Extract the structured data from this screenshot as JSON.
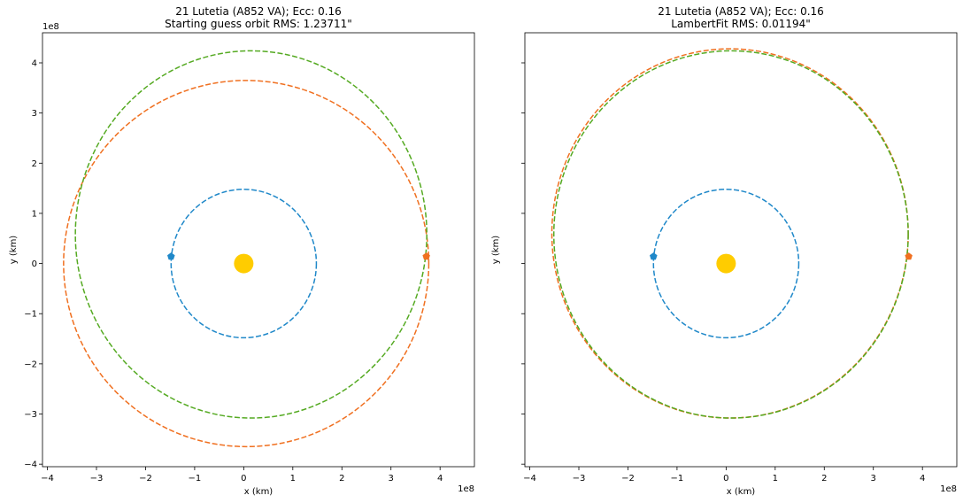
{
  "chart_data": [
    {
      "type": "line",
      "title": "21 Lutetia (A852 VA); Ecc: 0.16",
      "subtitle": "Starting guess orbit RMS: 1.23711\"",
      "xlabel": "x (km)",
      "ylabel": "y (km)",
      "xlim": [
        -4.1,
        4.7
      ],
      "ylim": [
        -4.05,
        4.6
      ],
      "xticks": [
        -4,
        -3,
        -2,
        -1,
        0,
        1,
        2,
        3,
        4
      ],
      "yticks": [
        -4,
        -3,
        -2,
        -1,
        0,
        1,
        2,
        3,
        4
      ],
      "xtick_labels": [
        "−4",
        "−3",
        "−2",
        "−1",
        "0",
        "1",
        "2",
        "3",
        "4"
      ],
      "ytick_labels": [
        "−4",
        "−3",
        "−2",
        "−1",
        "0",
        "1",
        "2",
        "3",
        "4"
      ],
      "x_offset_label": "1e8",
      "y_offset_label": "1e8",
      "grid": false,
      "sun": {
        "x": 0,
        "y": 0,
        "color": "#ffcc00"
      },
      "series": [
        {
          "color": "#1f88c9",
          "linestyle": "dashed",
          "center": [
            0,
            0
          ],
          "rx": 1.48,
          "ry": 1.48
        },
        {
          "color": "#f07020",
          "linestyle": "dashed",
          "center": [
            0.05,
            0.0
          ],
          "rx": 3.72,
          "ry": 3.65
        },
        {
          "color": "#55aa22",
          "linestyle": "dashed",
          "center": [
            0.15,
            0.58
          ],
          "rx": 3.58,
          "ry": 3.66
        }
      ],
      "markers": [
        {
          "x": -1.48,
          "y": 0.14,
          "color": "#1f88c9"
        },
        {
          "x": 3.72,
          "y": 0.14,
          "color": "#f07020"
        }
      ]
    },
    {
      "type": "line",
      "title": "21 Lutetia (A852 VA); Ecc: 0.16",
      "subtitle": "LambertFit RMS: 0.01194\"",
      "xlabel": "x (km)",
      "ylabel": "y (km)",
      "xlim": [
        -4.1,
        4.7
      ],
      "ylim": [
        -4.05,
        4.6
      ],
      "xticks": [
        -4,
        -3,
        -2,
        -1,
        0,
        1,
        2,
        3,
        4
      ],
      "yticks": [
        -4,
        -3,
        -2,
        -1,
        0,
        1,
        2,
        3,
        4
      ],
      "xtick_labels": [
        "−4",
        "−3",
        "−2",
        "−1",
        "0",
        "1",
        "2",
        "3",
        "4"
      ],
      "ytick_labels": [],
      "x_offset_label": "1e8",
      "y_offset_label": "",
      "grid": false,
      "sun": {
        "x": 0,
        "y": 0,
        "color": "#ffcc00"
      },
      "series": [
        {
          "color": "#1f88c9",
          "linestyle": "dashed",
          "center": [
            0,
            0
          ],
          "rx": 1.48,
          "ry": 1.48
        },
        {
          "color": "#f07020",
          "linestyle": "dashed",
          "center": [
            0.08,
            0.6
          ],
          "rx": 3.63,
          "ry": 3.68
        },
        {
          "color": "#55aa22",
          "linestyle": "dashed",
          "center": [
            0.1,
            0.58
          ],
          "rx": 3.61,
          "ry": 3.66
        }
      ],
      "markers": [
        {
          "x": -1.48,
          "y": 0.14,
          "color": "#1f88c9"
        },
        {
          "x": 3.72,
          "y": 0.14,
          "color": "#f07020"
        }
      ]
    }
  ]
}
